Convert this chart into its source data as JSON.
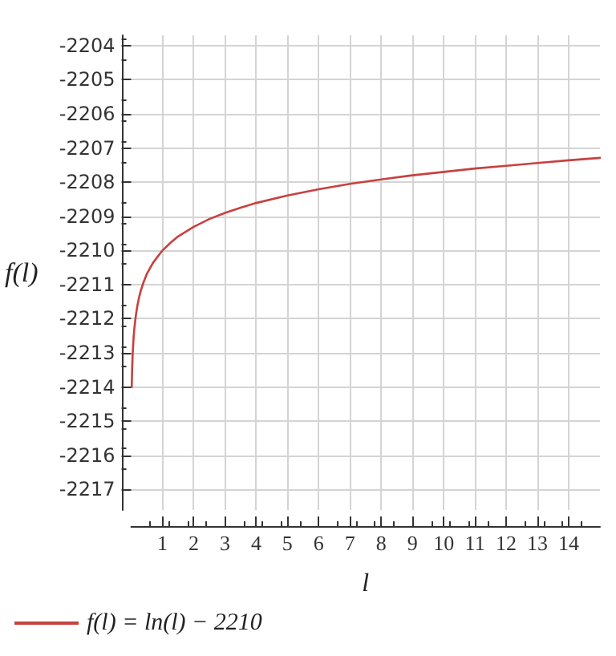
{
  "chart_data": {
    "type": "line",
    "xlabel": "l",
    "ylabel": "f(l)",
    "series": [
      {
        "name": "f(l) = ln(l) − 2210",
        "color": "#c84040",
        "x": [
          0.0183,
          0.03,
          0.04,
          0.05,
          0.075,
          0.1,
          0.15,
          0.2,
          0.25,
          0.3,
          0.4,
          0.5,
          0.7,
          1,
          1.25,
          1.5,
          2,
          2.5,
          3,
          3.5,
          4,
          5,
          6,
          7,
          8,
          9,
          10,
          11,
          12,
          13,
          14,
          15
        ],
        "values": [
          -2214.0,
          -2213.51,
          -2213.22,
          -2213.0,
          -2212.59,
          -2212.3,
          -2211.9,
          -2211.61,
          -2211.39,
          -2211.2,
          -2210.92,
          -2210.69,
          -2210.36,
          -2210.0,
          -2209.78,
          -2209.59,
          -2209.31,
          -2209.08,
          -2208.9,
          -2208.75,
          -2208.61,
          -2208.39,
          -2208.21,
          -2208.05,
          -2207.92,
          -2207.8,
          -2207.7,
          -2207.6,
          -2207.52,
          -2207.44,
          -2207.36,
          -2207.29
        ]
      }
    ],
    "xlim": [
      0,
      15
    ],
    "ylim": [
      -2217.6,
      -2203.7
    ],
    "xticks": [
      1,
      2,
      3,
      4,
      5,
      6,
      7,
      8,
      9,
      10,
      11,
      12,
      13,
      14
    ],
    "yticks": [
      -2217,
      -2216,
      -2215,
      -2214,
      -2213,
      -2212,
      -2211,
      -2210,
      -2209,
      -2208,
      -2207,
      -2206,
      -2205,
      -2204
    ],
    "grid": true,
    "legend": "bottom left",
    "marker": "none",
    "line_style": "solid"
  }
}
